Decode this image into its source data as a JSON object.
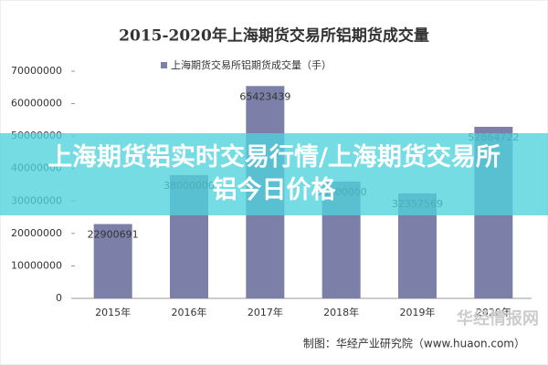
{
  "chart_data": {
    "type": "bar",
    "title": "2015-2020年上海期货交易所铝期货成交量",
    "categories": [
      "2015年",
      "2016年",
      "2017年",
      "2018年",
      "2019年",
      "2020年"
    ],
    "series": [
      {
        "name": "上海期货交易所铝期货成交量（手）",
        "color": "#7c80a8",
        "values": [
          22900691,
          38000000,
          65423439,
          36000000,
          32357569,
          52864722
        ]
      }
    ],
    "ylim": [
      0,
      70000000
    ],
    "yticks": [
      0,
      10000000,
      20000000,
      30000000,
      40000000,
      50000000,
      60000000,
      70000000
    ],
    "grid": false,
    "legend": "top",
    "source": "制图：华经产业研究院（www.huaon.com）",
    "watermark": "华经情报网",
    "banner": "上海期货铝实时交易行情/上海期货交易所铝今日价格"
  }
}
